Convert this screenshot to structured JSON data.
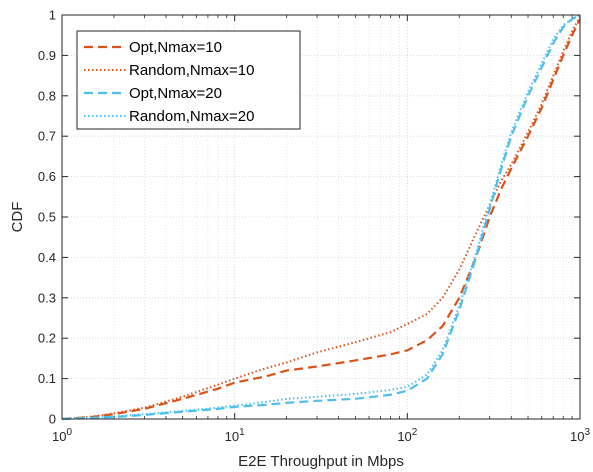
{
  "chart_data": {
    "type": "line",
    "title": "",
    "xlabel": "E2E Throughput in Mbps",
    "ylabel": "CDF",
    "xscale": "log",
    "xlim": [
      1,
      1000
    ],
    "ylim": [
      0,
      1
    ],
    "grid": true,
    "legend_position": "top-left",
    "x_ticks": [
      {
        "value": 1,
        "base": "10",
        "exp": "0"
      },
      {
        "value": 10,
        "base": "10",
        "exp": "1"
      },
      {
        "value": 100,
        "base": "10",
        "exp": "2"
      },
      {
        "value": 1000,
        "base": "10",
        "exp": "3"
      }
    ],
    "y_ticks": [
      {
        "value": 0,
        "label": "0"
      },
      {
        "value": 0.1,
        "label": "0.1"
      },
      {
        "value": 0.2,
        "label": "0.2"
      },
      {
        "value": 0.3,
        "label": "0.3"
      },
      {
        "value": 0.4,
        "label": "0.4"
      },
      {
        "value": 0.5,
        "label": "0.5"
      },
      {
        "value": 0.6,
        "label": "0.6"
      },
      {
        "value": 0.7,
        "label": "0.7"
      },
      {
        "value": 0.8,
        "label": "0.8"
      },
      {
        "value": 0.9,
        "label": "0.9"
      },
      {
        "value": 1,
        "label": "1"
      }
    ],
    "series": [
      {
        "name": "Opt,Nmax=10",
        "color": "#d95319",
        "dash": "dashed",
        "x": [
          1,
          1.5,
          2,
          3,
          5,
          8,
          10,
          15,
          20,
          30,
          50,
          80,
          100,
          130,
          160,
          200,
          250,
          300,
          350,
          400,
          500,
          600,
          700,
          800,
          900,
          1000
        ],
        "y": [
          0.0,
          0.005,
          0.012,
          0.025,
          0.05,
          0.075,
          0.09,
          0.105,
          0.12,
          0.13,
          0.145,
          0.16,
          0.17,
          0.195,
          0.23,
          0.3,
          0.4,
          0.5,
          0.57,
          0.62,
          0.7,
          0.77,
          0.84,
          0.9,
          0.95,
          0.99
        ]
      },
      {
        "name": "Random,Nmax=10",
        "color": "#d95319",
        "dash": "dotted",
        "x": [
          1,
          1.5,
          2,
          3,
          5,
          8,
          10,
          15,
          20,
          30,
          50,
          80,
          100,
          130,
          160,
          200,
          250,
          300,
          350,
          400,
          500,
          600,
          700,
          800,
          900,
          1000
        ],
        "y": [
          0.0,
          0.006,
          0.014,
          0.028,
          0.055,
          0.085,
          0.1,
          0.125,
          0.14,
          0.165,
          0.19,
          0.215,
          0.235,
          0.26,
          0.3,
          0.37,
          0.46,
          0.53,
          0.59,
          0.63,
          0.71,
          0.78,
          0.85,
          0.91,
          0.96,
          0.995
        ]
      },
      {
        "name": "Opt,Nmax=20",
        "color": "#4dbeee",
        "dash": "dashed",
        "x": [
          1,
          2,
          3,
          5,
          8,
          10,
          15,
          20,
          30,
          50,
          80,
          100,
          130,
          160,
          200,
          250,
          300,
          350,
          400,
          500,
          600,
          700,
          800,
          900,
          1000
        ],
        "y": [
          0.0,
          0.005,
          0.01,
          0.018,
          0.025,
          0.03,
          0.035,
          0.04,
          0.045,
          0.05,
          0.06,
          0.07,
          0.1,
          0.16,
          0.27,
          0.4,
          0.52,
          0.62,
          0.7,
          0.8,
          0.87,
          0.93,
          0.97,
          0.99,
          1.0
        ]
      },
      {
        "name": "Random,Nmax=20",
        "color": "#4dbeee",
        "dash": "dotted",
        "x": [
          1,
          2,
          3,
          5,
          8,
          10,
          15,
          20,
          30,
          50,
          80,
          100,
          130,
          160,
          200,
          250,
          300,
          350,
          400,
          500,
          600,
          700,
          800,
          900,
          1000
        ],
        "y": [
          0.0,
          0.006,
          0.012,
          0.02,
          0.028,
          0.033,
          0.042,
          0.05,
          0.055,
          0.062,
          0.072,
          0.08,
          0.11,
          0.17,
          0.28,
          0.41,
          0.53,
          0.63,
          0.71,
          0.81,
          0.88,
          0.94,
          0.975,
          0.99,
          1.0
        ]
      }
    ]
  }
}
